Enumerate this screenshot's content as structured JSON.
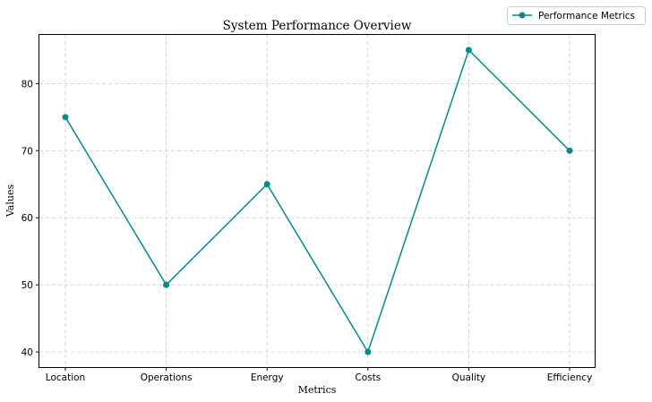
{
  "chart_data": {
    "type": "line",
    "title": "System Performance Overview",
    "xlabel": "Metrics",
    "ylabel": "Values",
    "categories": [
      "Location",
      "Operations",
      "Energy",
      "Costs",
      "Quality",
      "Efficiency"
    ],
    "series": [
      {
        "name": "Performance Metrics",
        "values": [
          75,
          50,
          65,
          40,
          85,
          70
        ],
        "color": "#008b8b"
      }
    ],
    "ylim": [
      37.75,
      87.25
    ],
    "yticks": [
      40,
      50,
      60,
      70,
      80
    ],
    "grid": true,
    "legend": "top-right"
  }
}
